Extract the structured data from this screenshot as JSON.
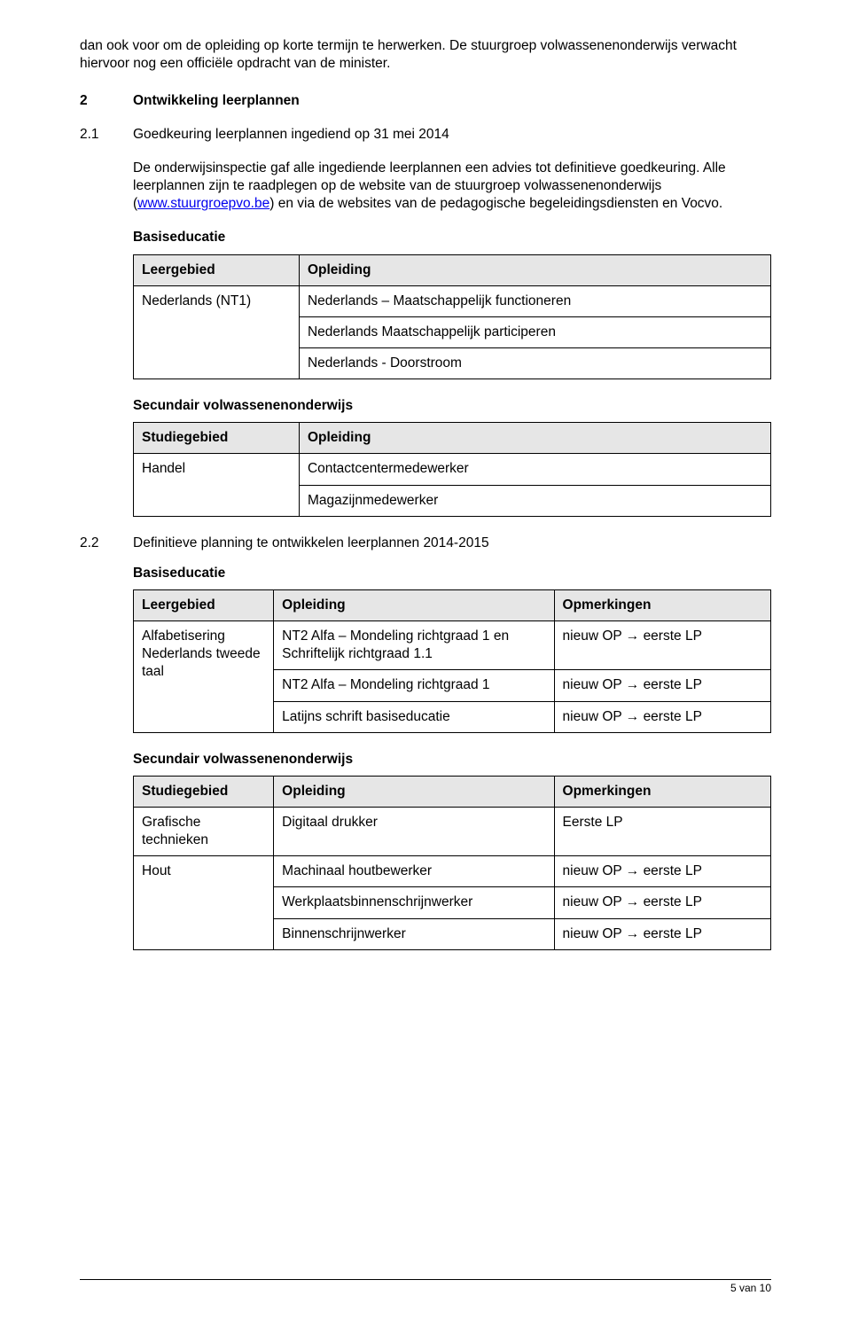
{
  "intro": "dan ook voor om de opleiding op korte termijn te herwerken. De stuurgroep volwassenenonderwijs verwacht hiervoor nog een officiële opdracht van de minister.",
  "heading2": {
    "num": "2",
    "text": "Ontwikkeling leerplannen"
  },
  "heading21": {
    "num": "2.1",
    "text": "Goedkeuring leerplannen ingediend op 31 mei 2014"
  },
  "para21_pre": "De onderwijsinspectie gaf alle ingediende leerplannen een advies tot definitieve goedkeuring. Alle leerplannen zijn te raadplegen op de website van de stuurgroep volwassenenonderwijs (",
  "para21_link": "www.stuurgroepvo.be",
  "para21_post": ") en via de websites van de pedagogische begeleidingsdiensten en Vocvo.",
  "t1_title": "Basiseducatie",
  "t1": {
    "head": {
      "c1": "Leergebied",
      "c2": "Opleiding"
    },
    "r1c1": "Nederlands (NT1)",
    "r1c2": "Nederlands – Maatschappelijk functioneren",
    "r2c2": "Nederlands Maatschappelijk participeren",
    "r3c2": "Nederlands - Doorstroom"
  },
  "t2_title": "Secundair volwassenenonderwijs",
  "t2": {
    "head": {
      "c1": "Studiegebied",
      "c2": "Opleiding"
    },
    "r1c1": "Handel",
    "r1c2": "Contactcentermedewerker",
    "r2c2": "Magazijnmedewerker"
  },
  "heading22": {
    "num": "2.2",
    "text": "Definitieve planning te ontwikkelen leerplannen 2014-2015"
  },
  "t3_title": "Basiseducatie",
  "t3": {
    "head": {
      "c1": "Leergebied",
      "c2": "Opleiding",
      "c3": "Opmerkingen"
    },
    "r1c1": "Alfabetisering Nederlands tweede taal",
    "r1c2": "NT2 Alfa – Mondeling richtgraad 1 en Schriftelijk richtgraad 1.1",
    "r1c3": "nieuw OP → eerste LP",
    "r2c2": "NT2 Alfa – Mondeling richtgraad 1",
    "r2c3": "nieuw OP → eerste LP",
    "r3c2": "Latijns schrift basiseducatie",
    "r3c3": "nieuw OP → eerste LP"
  },
  "t4_title": "Secundair volwassenenonderwijs",
  "t4": {
    "head": {
      "c1": "Studiegebied",
      "c2": "Opleiding",
      "c3": "Opmerkingen"
    },
    "r1c1": "Grafische technieken",
    "r1c2": "Digitaal drukker",
    "r1c3": "Eerste LP",
    "r2c1": "Hout",
    "r2c2": "Machinaal houtbewerker",
    "r2c3": "nieuw OP → eerste LP",
    "r3c2": "Werkplaatsbinnenschrijnwerker",
    "r3c3": "nieuw OP → eerste LP",
    "r4c2": "Binnenschrijnwerker",
    "r4c3": "nieuw OP → eerste LP"
  },
  "footer": "5 van 10"
}
